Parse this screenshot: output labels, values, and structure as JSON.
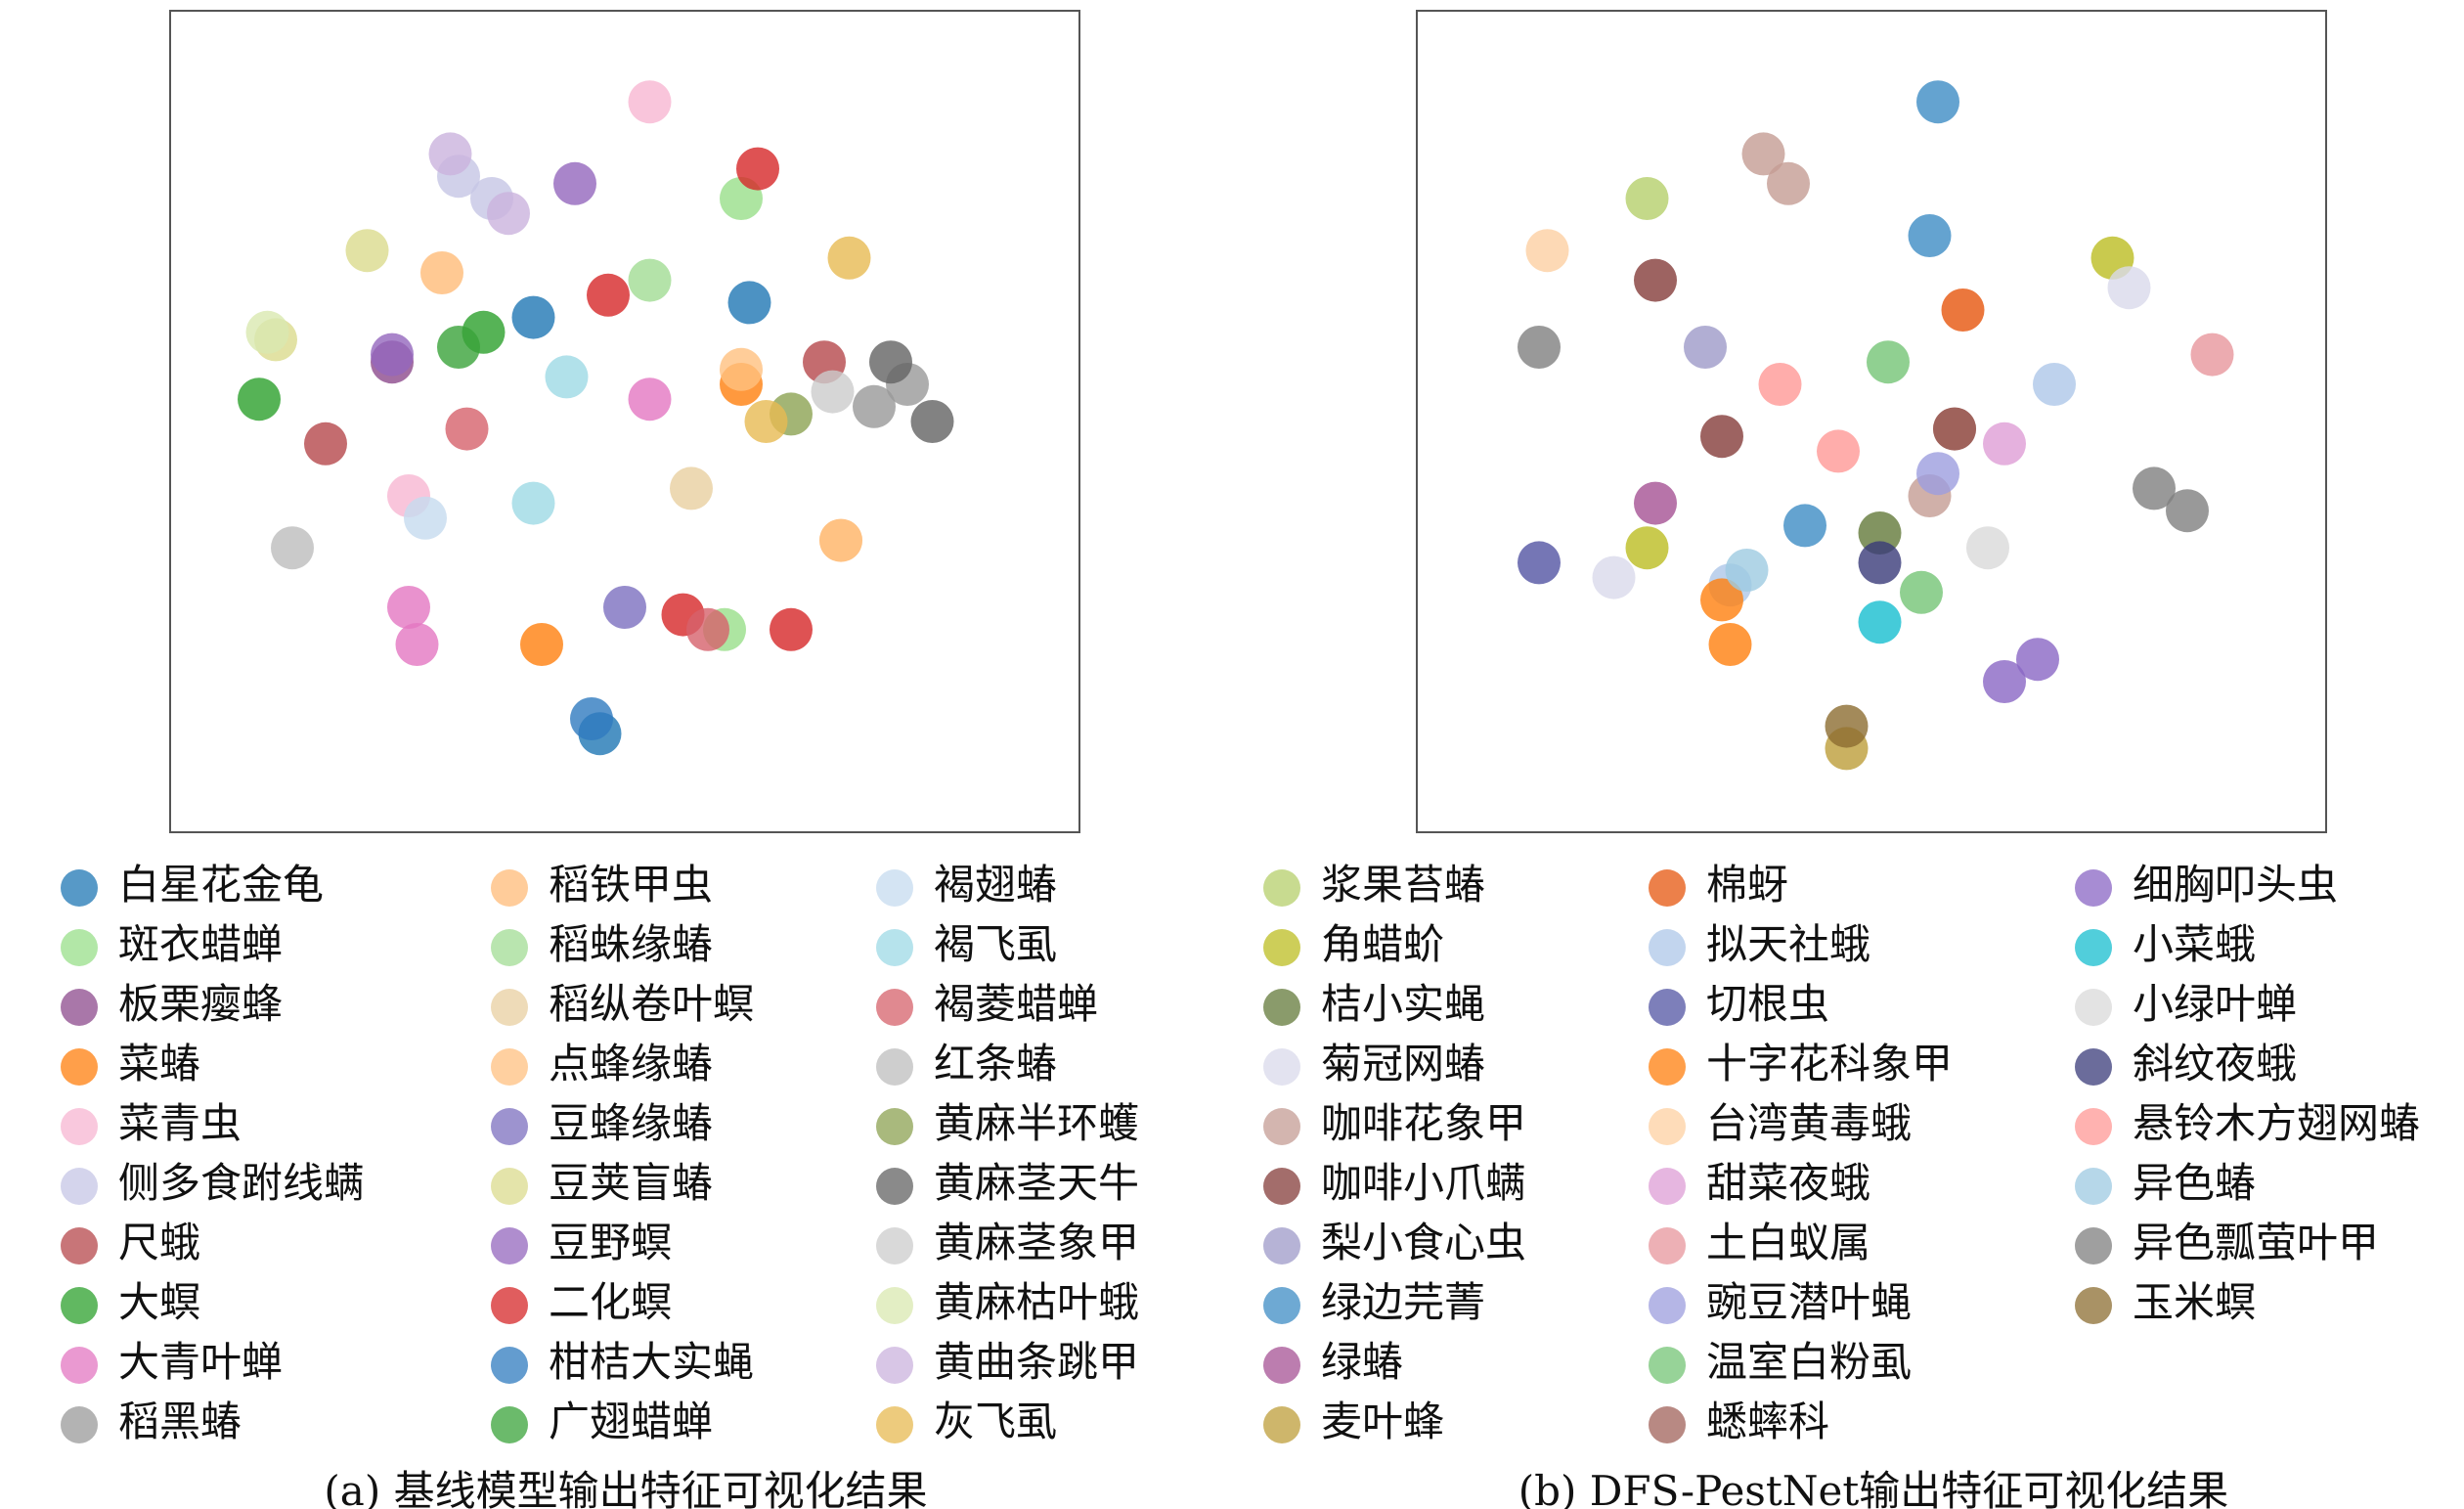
{
  "chart_data": [
    {
      "type": "scatter",
      "caption": "(a) 基线模型输出特征可视化结果",
      "xlim": [
        0,
        100
      ],
      "ylim": [
        0,
        100
      ],
      "series": [
        {
          "name": "白星花金龟",
          "color": "#1f77b4",
          "x": [
            47,
            39,
            65
          ],
          "y": [
            8,
            64,
            66
          ]
        },
        {
          "name": "斑衣蜡蝉",
          "color": "#98df8a",
          "x": [
            62,
            64
          ],
          "y": [
            22,
            80
          ]
        },
        {
          "name": "板栗瘿蜂",
          "color": "#8c4a8c",
          "x": [
            22
          ],
          "y": [
            58
          ]
        },
        {
          "name": "菜蝽",
          "color": "#ff7f0e",
          "x": [
            40,
            64
          ],
          "y": [
            20,
            55
          ]
        },
        {
          "name": "菜青虫",
          "color": "#f7b6d2",
          "x": [
            53,
            24
          ],
          "y": [
            93,
            40
          ]
        },
        {
          "name": "侧多食跗线螨",
          "color": "#c5c6e5",
          "x": [
            30,
            34
          ],
          "y": [
            83,
            80
          ]
        },
        {
          "name": "尺蛾",
          "color": "#b5474b",
          "x": [
            14,
            74
          ],
          "y": [
            47,
            58
          ]
        },
        {
          "name": "大螟",
          "color": "#2ca02c",
          "x": [
            6,
            33
          ],
          "y": [
            53,
            62
          ]
        },
        {
          "name": "大青叶蝉",
          "color": "#e377c2",
          "x": [
            24,
            53,
            25
          ],
          "y": [
            25,
            53,
            20
          ]
        },
        {
          "name": "稻黑蝽",
          "color": "#999999",
          "x": [
            84,
            80
          ],
          "y": [
            55,
            52
          ]
        },
        {
          "name": "稻铁甲虫",
          "color": "#ffbb78",
          "x": [
            28,
            76
          ],
          "y": [
            70,
            34
          ]
        },
        {
          "name": "稻蛛缘蝽",
          "color": "#a1dc94",
          "x": [
            53
          ],
          "y": [
            69
          ]
        },
        {
          "name": "稻纵卷叶螟",
          "color": "#e8cfa0",
          "x": [
            58
          ],
          "y": [
            41
          ]
        },
        {
          "name": "点蜂缘蝽",
          "color": "#ffc080",
          "x": [
            76,
            64
          ],
          "y": [
            34,
            57
          ]
        },
        {
          "name": "豆蜂缘蝽",
          "color": "#7c6fbf",
          "x": [
            50
          ],
          "y": [
            25
          ]
        },
        {
          "name": "豆荚盲蝽",
          "color": "#dbdb8d",
          "x": [
            8,
            19
          ],
          "y": [
            61,
            73
          ]
        },
        {
          "name": "豆野螟",
          "color": "#9467bd",
          "x": [
            44,
            22
          ],
          "y": [
            82,
            59
          ]
        },
        {
          "name": "二化螟",
          "color": "#d62728",
          "x": [
            66,
            57,
            48,
            70
          ],
          "y": [
            84,
            24,
            67,
            22
          ]
        },
        {
          "name": "柑桔大实蝇",
          "color": "#2f7bbf",
          "x": [
            46
          ],
          "y": [
            10
          ]
        },
        {
          "name": "广翅蜡蝉",
          "color": "#3aa33a",
          "x": [
            30
          ],
          "y": [
            60
          ]
        },
        {
          "name": "褐翅蝽",
          "color": "#c6dbef",
          "x": [
            26
          ],
          "y": [
            37
          ]
        },
        {
          "name": "褐飞虱",
          "color": "#9edae5",
          "x": [
            39,
            43
          ],
          "y": [
            39,
            56
          ]
        },
        {
          "name": "褐菱蜡蝉",
          "color": "#d6616b",
          "x": [
            31,
            60
          ],
          "y": [
            49,
            22
          ]
        },
        {
          "name": "红条蝽",
          "color": "#bdbdbd",
          "x": [
            10
          ],
          "y": [
            33
          ]
        },
        {
          "name": "黄麻半环蠖",
          "color": "#8ca252",
          "x": [
            70
          ],
          "y": [
            51
          ]
        },
        {
          "name": "黄麻茎天牛",
          "color": "#636363",
          "x": [
            87,
            82
          ],
          "y": [
            50,
            58
          ]
        },
        {
          "name": "黄麻茎象甲",
          "color": "#cccccc",
          "x": [
            75
          ],
          "y": [
            54
          ]
        },
        {
          "name": "黄麻枯叶蛾",
          "color": "#d9e8b0",
          "x": [
            7
          ],
          "y": [
            62
          ]
        },
        {
          "name": "黄曲条跳甲",
          "color": "#cbb3dd",
          "x": [
            29,
            36
          ],
          "y": [
            86,
            78
          ]
        },
        {
          "name": "灰飞虱",
          "color": "#e7ba52",
          "x": [
            67,
            77
          ],
          "y": [
            50,
            72
          ]
        }
      ]
    },
    {
      "type": "scatter",
      "caption": "(b) DFS-PestNet输出特征可视化结果",
      "xlim": [
        0,
        100
      ],
      "ylim": [
        0,
        100
      ],
      "series": [
        {
          "name": "浆果苔蝽",
          "color": "#b5cf6b",
          "x": [
            23
          ],
          "y": [
            80
          ]
        },
        {
          "name": "角蜡蚧",
          "color": "#bcbd22",
          "x": [
            23,
            79
          ],
          "y": [
            33,
            72
          ]
        },
        {
          "name": "桔小实蝇",
          "color": "#637939",
          "x": [
            51
          ],
          "y": [
            35
          ]
        },
        {
          "name": "菊冠网蝽",
          "color": "#dadaeb",
          "x": [
            19,
            81
          ],
          "y": [
            29,
            68
          ]
        },
        {
          "name": "咖啡花象甲",
          "color": "#c49c94",
          "x": [
            40,
            37,
            57
          ],
          "y": [
            82,
            86,
            40
          ]
        },
        {
          "name": "咖啡小爪螨",
          "color": "#843c39",
          "x": [
            24,
            32,
            60
          ],
          "y": [
            69,
            48,
            49
          ]
        },
        {
          "name": "梨小食心虫",
          "color": "#9e9ac8",
          "x": [
            30
          ],
          "y": [
            60
          ]
        },
        {
          "name": "绿边芫菁",
          "color": "#3d8cc4",
          "x": [
            58,
            57,
            42
          ],
          "y": [
            93,
            75,
            36
          ]
        },
        {
          "name": "绿蝽",
          "color": "#a55194",
          "x": [
            24
          ],
          "y": [
            39
          ]
        },
        {
          "name": "麦叶蜂",
          "color": "#bd9e39",
          "x": [
            47
          ],
          "y": [
            6
          ]
        },
        {
          "name": "棉蚜",
          "color": "#e6550d",
          "x": [
            61
          ],
          "y": [
            65
          ]
        },
        {
          "name": "拟天社蛾",
          "color": "#aec7e8",
          "x": [
            72,
            33
          ],
          "y": [
            55,
            28
          ]
        },
        {
          "name": "切根虫",
          "color": "#5254a3",
          "x": [
            10
          ],
          "y": [
            31
          ]
        },
        {
          "name": "十字花科象甲",
          "color": "#ff7f0e",
          "x": [
            33,
            32
          ],
          "y": [
            20,
            26
          ]
        },
        {
          "name": "台湾黄毒蛾",
          "color": "#fdd0a2",
          "x": [
            11
          ],
          "y": [
            73
          ]
        },
        {
          "name": "甜菜夜蛾",
          "color": "#de9ed6",
          "x": [
            66
          ],
          "y": [
            47
          ]
        },
        {
          "name": "土白蚁属",
          "color": "#e7969c",
          "x": [
            91
          ],
          "y": [
            59
          ]
        },
        {
          "name": "豌豆潜叶蝇",
          "color": "#9c9ede",
          "x": [
            58
          ],
          "y": [
            43
          ]
        },
        {
          "name": "温室白粉虱",
          "color": "#74c476",
          "x": [
            52,
            56
          ],
          "y": [
            58,
            27
          ]
        },
        {
          "name": "蟋蟀科",
          "color": "#a0615a",
          "x": [
            60
          ],
          "y": [
            49
          ]
        },
        {
          "name": "细胸叩头虫",
          "color": "#8a66c4",
          "x": [
            70,
            66
          ],
          "y": [
            18,
            15
          ]
        },
        {
          "name": "小菜蛾",
          "color": "#17becf",
          "x": [
            51
          ],
          "y": [
            23
          ]
        },
        {
          "name": "小绿叶蝉",
          "color": "#d9d9d9",
          "x": [
            64
          ],
          "y": [
            33
          ]
        },
        {
          "name": "斜纹夜蛾",
          "color": "#393b79",
          "x": [
            51
          ],
          "y": [
            31
          ]
        },
        {
          "name": "悬铃木方翅网蝽",
          "color": "#ff9896",
          "x": [
            39,
            46
          ],
          "y": [
            55,
            46
          ]
        },
        {
          "name": "异色蝽",
          "color": "#9ecae1",
          "x": [
            35
          ],
          "y": [
            30
          ]
        },
        {
          "name": "异色瓢萤叶甲",
          "color": "#7f7f7f",
          "x": [
            84,
            88,
            10
          ],
          "y": [
            41,
            38,
            60
          ]
        },
        {
          "name": "玉米螟",
          "color": "#8c6d31",
          "x": [
            47
          ],
          "y": [
            9
          ]
        }
      ]
    }
  ]
}
